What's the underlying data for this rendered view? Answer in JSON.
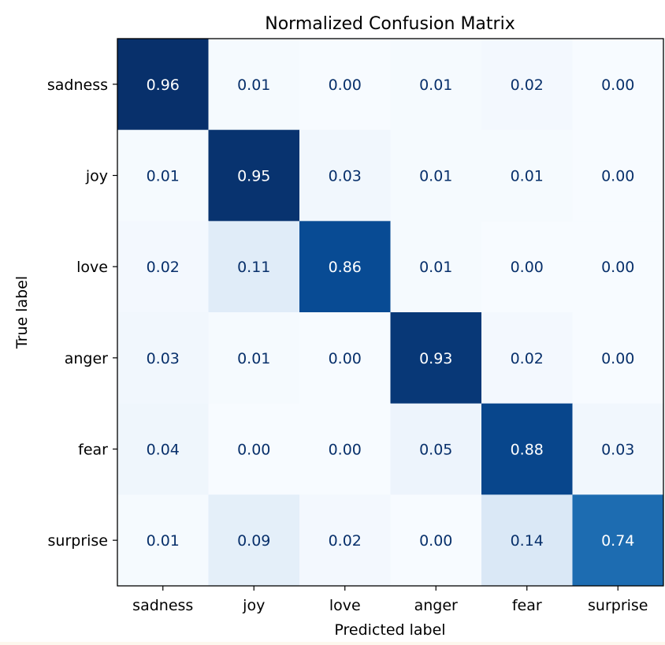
{
  "chart_data": {
    "type": "heatmap",
    "title": "Normalized Confusion Matrix",
    "xlabel": "Predicted label",
    "ylabel": "True label",
    "x_categories": [
      "sadness",
      "joy",
      "love",
      "anger",
      "fear",
      "surprise"
    ],
    "y_categories": [
      "sadness",
      "joy",
      "love",
      "anger",
      "fear",
      "surprise"
    ],
    "values": [
      [
        0.96,
        0.01,
        0.0,
        0.01,
        0.02,
        0.0
      ],
      [
        0.01,
        0.95,
        0.03,
        0.01,
        0.01,
        0.0
      ],
      [
        0.02,
        0.11,
        0.86,
        0.01,
        0.0,
        0.0
      ],
      [
        0.03,
        0.01,
        0.0,
        0.93,
        0.02,
        0.0
      ],
      [
        0.04,
        0.0,
        0.0,
        0.05,
        0.88,
        0.03
      ],
      [
        0.01,
        0.09,
        0.02,
        0.0,
        0.14,
        0.74
      ]
    ],
    "value_format": "0.00",
    "colormap": "Blues",
    "colorbar": false,
    "grid": false
  },
  "colors": {
    "page_background": "#fdf8ee",
    "plot_background": "#ffffff",
    "axis": "#000000",
    "text_on_dark": "#ffffff",
    "text_on_light": "#08306b"
  }
}
